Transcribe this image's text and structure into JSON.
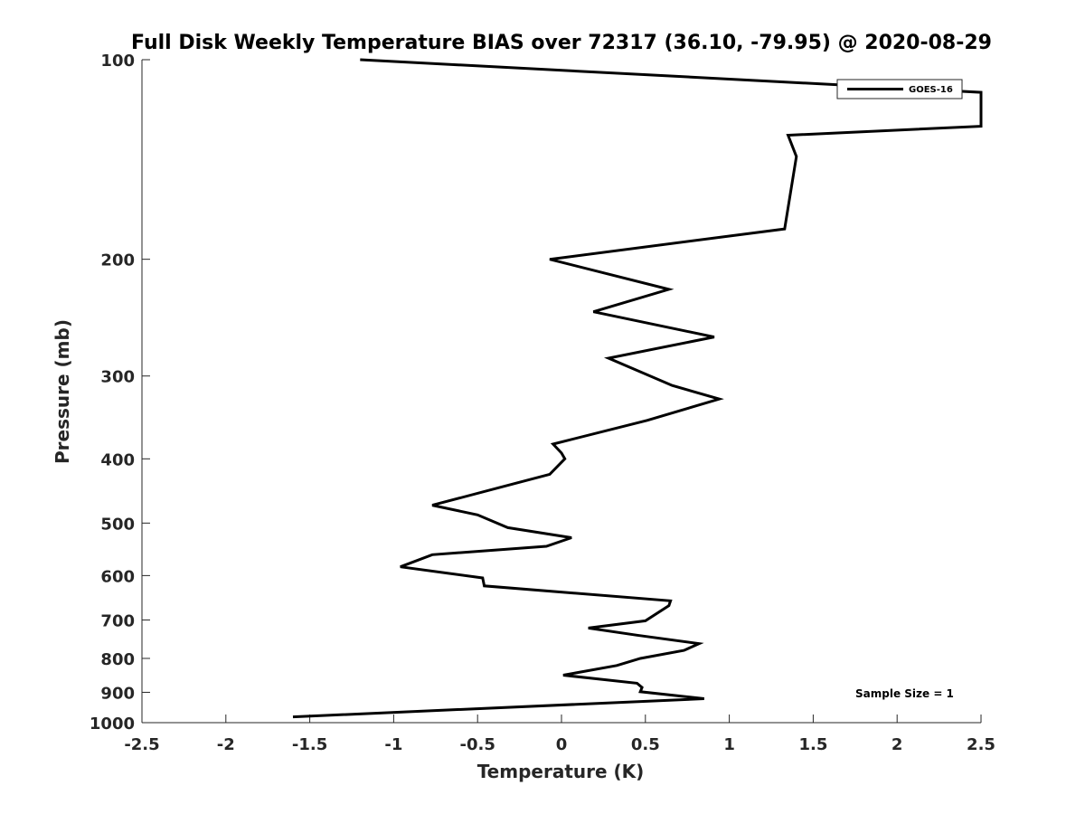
{
  "chart_data": {
    "type": "line",
    "title": "Full Disk Weekly Temperature BIAS over 72317 (36.10, -79.95) @ 2020-08-29",
    "xlabel": "Temperature (K)",
    "ylabel": "Pressure (mb)",
    "xlim": [
      -2.5,
      2.5
    ],
    "ylim": [
      100,
      1000
    ],
    "y_scale": "log",
    "y_reversed": true,
    "grid": false,
    "x_ticks": [
      -2.5,
      -2,
      -1.5,
      -1,
      -0.5,
      0,
      0.5,
      1,
      1.5,
      2,
      2.5
    ],
    "x_tick_labels": [
      "-2.5",
      "-2",
      "-1.5",
      "-1",
      "-0.5",
      "0",
      "0.5",
      "1",
      "1.5",
      "2",
      "2.5"
    ],
    "y_ticks": [
      100,
      200,
      300,
      400,
      500,
      600,
      700,
      800,
      900,
      1000
    ],
    "y_tick_labels": [
      "100",
      "200",
      "300",
      "400",
      "500",
      "600",
      "700",
      "800",
      "900",
      "1000"
    ],
    "legend": {
      "placement": "top-right",
      "entries": [
        "GOES-16"
      ]
    },
    "annotation": "Sample Size = 1",
    "line_color": "#000000",
    "series": [
      {
        "name": "GOES-16",
        "points": [
          {
            "x": -1.2,
            "p": 100
          },
          {
            "x": 2.5,
            "p": 112
          },
          {
            "x": 2.5,
            "p": 126
          },
          {
            "x": 1.35,
            "p": 130
          },
          {
            "x": 1.4,
            "p": 140
          },
          {
            "x": 1.33,
            "p": 180
          },
          {
            "x": -0.07,
            "p": 200
          },
          {
            "x": 0.64,
            "p": 222
          },
          {
            "x": 0.19,
            "p": 240
          },
          {
            "x": 0.91,
            "p": 262
          },
          {
            "x": 0.28,
            "p": 282
          },
          {
            "x": 0.66,
            "p": 310
          },
          {
            "x": 0.94,
            "p": 325
          },
          {
            "x": 0.51,
            "p": 350
          },
          {
            "x": -0.05,
            "p": 380
          },
          {
            "x": 0.0,
            "p": 392
          },
          {
            "x": 0.02,
            "p": 400
          },
          {
            "x": -0.07,
            "p": 422
          },
          {
            "x": -0.37,
            "p": 442
          },
          {
            "x": -0.77,
            "p": 470
          },
          {
            "x": -0.5,
            "p": 486
          },
          {
            "x": -0.32,
            "p": 508
          },
          {
            "x": 0.06,
            "p": 526
          },
          {
            "x": -0.09,
            "p": 542
          },
          {
            "x": -0.77,
            "p": 558
          },
          {
            "x": -0.96,
            "p": 582
          },
          {
            "x": -0.47,
            "p": 605
          },
          {
            "x": -0.46,
            "p": 622
          },
          {
            "x": 0.65,
            "p": 655
          },
          {
            "x": 0.64,
            "p": 666
          },
          {
            "x": 0.5,
            "p": 702
          },
          {
            "x": 0.16,
            "p": 720
          },
          {
            "x": 0.45,
            "p": 738
          },
          {
            "x": 0.82,
            "p": 760
          },
          {
            "x": 0.73,
            "p": 778
          },
          {
            "x": 0.47,
            "p": 800
          },
          {
            "x": 0.33,
            "p": 820
          },
          {
            "x": 0.01,
            "p": 848
          },
          {
            "x": 0.45,
            "p": 872
          },
          {
            "x": 0.48,
            "p": 885
          },
          {
            "x": 0.47,
            "p": 898
          },
          {
            "x": 0.85,
            "p": 920
          },
          {
            "x": -1.6,
            "p": 980
          }
        ]
      }
    ]
  }
}
